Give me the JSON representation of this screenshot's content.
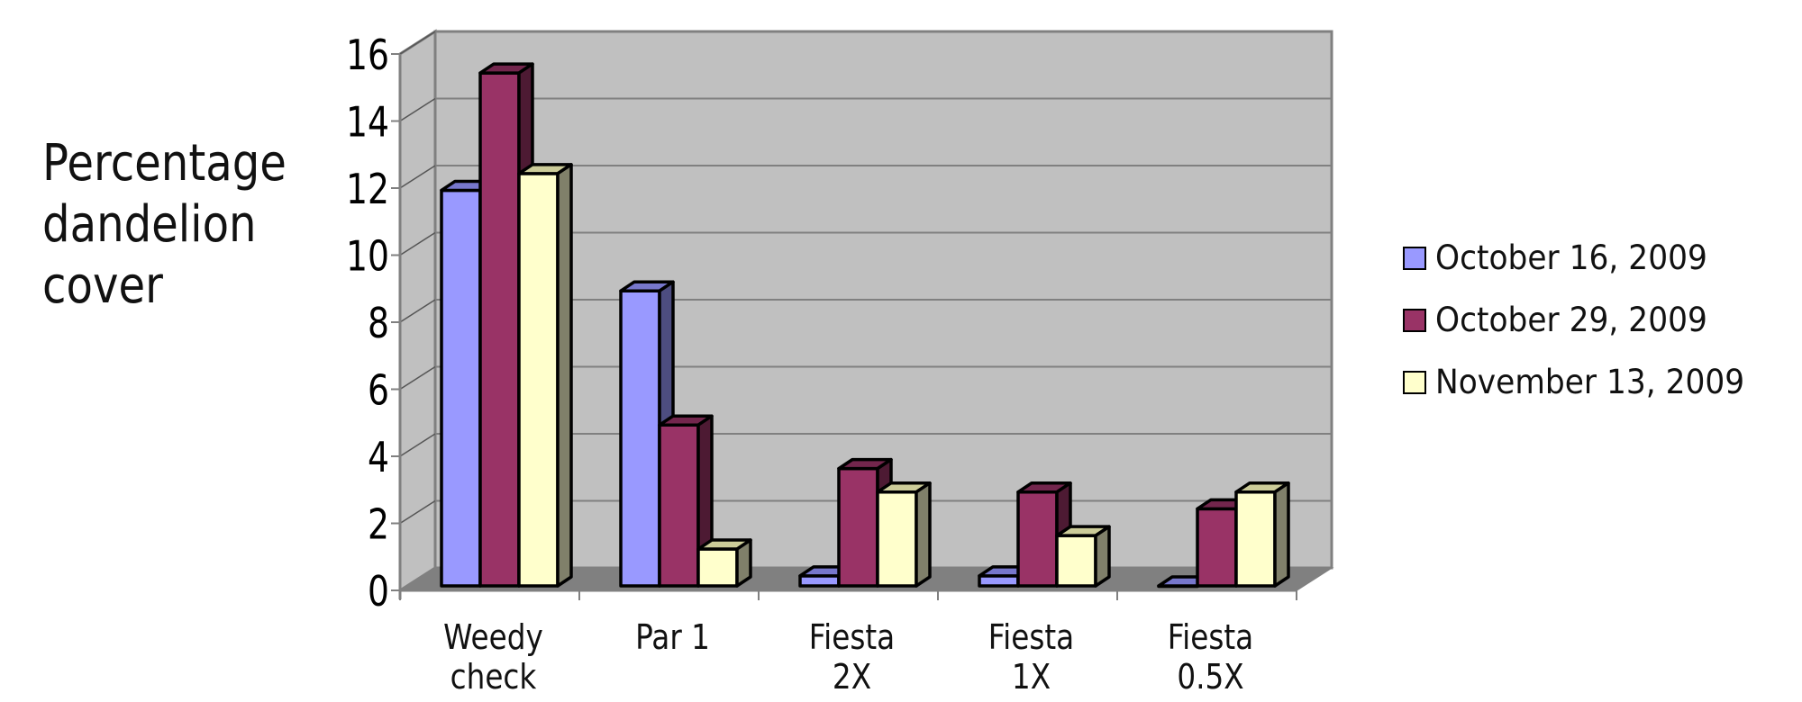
{
  "chart_data": {
    "type": "bar",
    "style": "3d-clustered-column",
    "title": "",
    "xlabel": "",
    "ylabel": "Percentage dandelion cover",
    "ylabel_lines": [
      "Percentage",
      "dandelion",
      "cover"
    ],
    "ylim": [
      0,
      16
    ],
    "yticks": [
      0,
      2,
      4,
      6,
      8,
      10,
      12,
      14,
      16
    ],
    "grid": true,
    "legend_position": "right",
    "categories": [
      "Weedy check",
      "Par 1",
      "Fiesta 2X",
      "Fiesta 1X",
      "Fiesta 0.5X"
    ],
    "category_lines": [
      [
        "Weedy",
        "check"
      ],
      [
        "Par 1"
      ],
      [
        "Fiesta",
        "2X"
      ],
      [
        "Fiesta",
        "1X"
      ],
      [
        "Fiesta",
        "0.5X"
      ]
    ],
    "series": [
      {
        "name": "October 16, 2009",
        "values": [
          11.8,
          8.8,
          0.3,
          0.3,
          0.0
        ],
        "color": "#9999FF",
        "top_color": "#7777CC",
        "side_color": "#4D4D80"
      },
      {
        "name": "October 29, 2009",
        "values": [
          15.3,
          4.8,
          3.5,
          2.8,
          2.3
        ],
        "color": "#993366",
        "top_color": "#73264D",
        "side_color": "#4D1A33"
      },
      {
        "name": "November 13, 2009",
        "values": [
          12.3,
          1.1,
          2.8,
          1.5,
          2.8
        ],
        "color": "#FFFFCC",
        "top_color": "#CCCC99",
        "side_color": "#80806A"
      }
    ]
  },
  "colors": {
    "back_wall": "#C0C0C0",
    "side_wall": "#C0C0C0",
    "floor": "#808080",
    "gridline": "#808080",
    "axis": "#808080"
  }
}
